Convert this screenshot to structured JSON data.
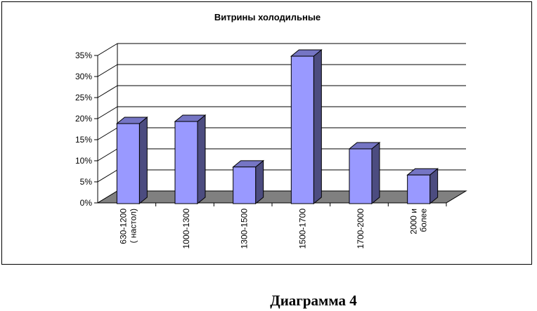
{
  "chart_data": {
    "type": "bar",
    "title": "Витрины холодильные",
    "categories": [
      [
        "630-1200",
        "( настол)"
      ],
      [
        "1000-1300"
      ],
      [
        "1300-1500"
      ],
      [
        "1500-1700"
      ],
      [
        "1700-2000"
      ],
      [
        "2000 и",
        "более"
      ]
    ],
    "values": [
      0.19,
      0.195,
      0.087,
      0.355,
      0.13,
      0.068
    ],
    "ylim": [
      0,
      0.35
    ],
    "yticks": [
      "0%",
      "5%",
      "10%",
      "15%",
      "20%",
      "25%",
      "30%",
      "35%"
    ],
    "grid": true,
    "legend": "none",
    "colors": {
      "bar_front": "#9999ff",
      "bar_side": "#4c4c80",
      "bar_top": "#7575c4",
      "floor": "#808080"
    }
  },
  "caption": "Диаграмма 4"
}
